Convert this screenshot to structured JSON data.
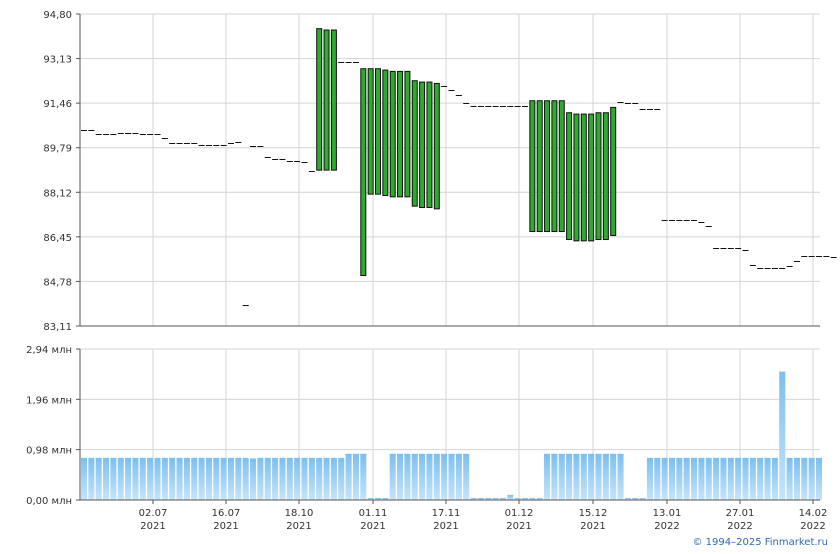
{
  "chart_data": [
    {
      "type": "candlestick",
      "panel": "price",
      "ylim": [
        83.11,
        94.8
      ],
      "yticks": [
        "94,80",
        "93,13",
        "91,46",
        "89,79",
        "88,12",
        "86,45",
        "84,78",
        "83,11"
      ],
      "ytick_values": [
        94.8,
        93.13,
        91.46,
        89.79,
        88.12,
        86.45,
        84.78,
        83.11
      ],
      "colors": {
        "body": "#2eaa2e",
        "outline": "#111111",
        "flat": "#111111"
      },
      "bars": [
        {
          "i": 0,
          "v": 90.45
        },
        {
          "i": 1,
          "v": 90.45
        },
        {
          "i": 2,
          "v": 90.3
        },
        {
          "i": 3,
          "v": 90.3
        },
        {
          "i": 4,
          "v": 90.3
        },
        {
          "i": 5,
          "v": 90.35
        },
        {
          "i": 6,
          "v": 90.35
        },
        {
          "i": 7,
          "v": 90.35
        },
        {
          "i": 8,
          "v": 90.3
        },
        {
          "i": 9,
          "v": 90.3
        },
        {
          "i": 10,
          "v": 90.3
        },
        {
          "i": 11,
          "v": 90.15
        },
        {
          "i": 12,
          "v": 89.95
        },
        {
          "i": 13,
          "v": 89.95
        },
        {
          "i": 14,
          "v": 89.95
        },
        {
          "i": 15,
          "v": 89.95
        },
        {
          "i": 16,
          "v": 89.9
        },
        {
          "i": 17,
          "v": 89.9
        },
        {
          "i": 18,
          "v": 89.9
        },
        {
          "i": 19,
          "v": 89.9
        },
        {
          "i": 20,
          "v": 89.95
        },
        {
          "i": 21,
          "v": 90.0
        },
        {
          "i": 22,
          "v": 83.9
        },
        {
          "i": 23,
          "v": 89.85
        },
        {
          "i": 24,
          "v": 89.85
        },
        {
          "i": 25,
          "v": 89.45
        },
        {
          "i": 26,
          "v": 89.35
        },
        {
          "i": 27,
          "v": 89.35
        },
        {
          "i": 28,
          "v": 89.3
        },
        {
          "i": 29,
          "v": 89.3
        },
        {
          "i": 30,
          "v": 89.25
        },
        {
          "i": 31,
          "v": 88.9
        },
        {
          "i": 32,
          "o": 94.25,
          "c": 88.95
        },
        {
          "i": 33,
          "o": 94.2,
          "c": 88.95
        },
        {
          "i": 34,
          "o": 94.2,
          "c": 88.95
        },
        {
          "i": 35,
          "v": 93.0
        },
        {
          "i": 36,
          "v": 93.0
        },
        {
          "i": 37,
          "v": 93.0
        },
        {
          "i": 38,
          "o": 92.75,
          "c": 85.0
        },
        {
          "i": 39,
          "o": 92.75,
          "c": 88.05
        },
        {
          "i": 40,
          "o": 92.75,
          "c": 88.05
        },
        {
          "i": 41,
          "o": 92.7,
          "c": 88.0
        },
        {
          "i": 42,
          "o": 92.65,
          "c": 87.95
        },
        {
          "i": 43,
          "o": 92.65,
          "c": 87.95
        },
        {
          "i": 44,
          "o": 92.65,
          "c": 87.95
        },
        {
          "i": 45,
          "o": 92.3,
          "c": 87.6
        },
        {
          "i": 46,
          "o": 92.25,
          "c": 87.55
        },
        {
          "i": 47,
          "o": 92.25,
          "c": 87.55
        },
        {
          "i": 48,
          "o": 92.2,
          "c": 87.5
        },
        {
          "i": 49,
          "v": 92.1
        },
        {
          "i": 50,
          "v": 91.95
        },
        {
          "i": 51,
          "v": 91.75
        },
        {
          "i": 52,
          "v": 91.45
        },
        {
          "i": 53,
          "v": 91.35
        },
        {
          "i": 54,
          "v": 91.35
        },
        {
          "i": 55,
          "v": 91.35
        },
        {
          "i": 56,
          "v": 91.35
        },
        {
          "i": 57,
          "v": 91.35
        },
        {
          "i": 58,
          "v": 91.35
        },
        {
          "i": 59,
          "v": 91.35
        },
        {
          "i": 60,
          "v": 91.35
        },
        {
          "i": 61,
          "o": 91.55,
          "c": 86.65
        },
        {
          "i": 62,
          "o": 91.55,
          "c": 86.65
        },
        {
          "i": 63,
          "o": 91.55,
          "c": 86.65
        },
        {
          "i": 64,
          "o": 91.55,
          "c": 86.65
        },
        {
          "i": 65,
          "o": 91.55,
          "c": 86.65
        },
        {
          "i": 66,
          "o": 91.1,
          "c": 86.35
        },
        {
          "i": 67,
          "o": 91.05,
          "c": 86.3
        },
        {
          "i": 68,
          "o": 91.05,
          "c": 86.3
        },
        {
          "i": 69,
          "o": 91.05,
          "c": 86.3
        },
        {
          "i": 70,
          "o": 91.1,
          "c": 86.35
        },
        {
          "i": 71,
          "o": 91.1,
          "c": 86.35
        },
        {
          "i": 72,
          "o": 91.3,
          "c": 86.5
        },
        {
          "i": 73,
          "v": 91.5
        },
        {
          "i": 74,
          "v": 91.45
        },
        {
          "i": 75,
          "v": 91.45
        },
        {
          "i": 76,
          "v": 91.25
        },
        {
          "i": 77,
          "v": 91.25
        },
        {
          "i": 78,
          "v": 91.25
        },
        {
          "i": 79,
          "v": 87.1
        },
        {
          "i": 80,
          "v": 87.1
        },
        {
          "i": 81,
          "v": 87.1
        },
        {
          "i": 82,
          "v": 87.1
        },
        {
          "i": 83,
          "v": 87.1
        },
        {
          "i": 84,
          "v": 87.0
        },
        {
          "i": 85,
          "v": 86.85
        },
        {
          "i": 86,
          "v": 86.05
        },
        {
          "i": 87,
          "v": 86.05
        },
        {
          "i": 88,
          "v": 86.05
        },
        {
          "i": 89,
          "v": 86.05
        },
        {
          "i": 90,
          "v": 85.95
        },
        {
          "i": 91,
          "v": 85.4
        },
        {
          "i": 92,
          "v": 85.3
        },
        {
          "i": 93,
          "v": 85.3
        },
        {
          "i": 94,
          "v": 85.3
        },
        {
          "i": 95,
          "v": 85.3
        },
        {
          "i": 96,
          "v": 85.35
        },
        {
          "i": 97,
          "v": 85.55
        },
        {
          "i": 98,
          "v": 85.75
        },
        {
          "i": 99,
          "v": 85.75
        },
        {
          "i": 100,
          "v": 85.75
        },
        {
          "i": 101,
          "v": 85.75
        },
        {
          "i": 102,
          "v": 85.7
        }
      ]
    },
    {
      "type": "bar",
      "panel": "volume",
      "ylim": [
        0,
        2.94
      ],
      "yticks": [
        "2,94 млн",
        "1,96 млн",
        "0,98 млн",
        "0,00 млн"
      ],
      "ytick_values": [
        2.94,
        1.96,
        0.98,
        0.0
      ],
      "unit": "млн",
      "colors": {
        "top": "#7cbff0",
        "bottom": "#c6e4fb"
      },
      "values": [
        0.82,
        0.82,
        0.82,
        0.82,
        0.82,
        0.82,
        0.82,
        0.82,
        0.82,
        0.82,
        0.82,
        0.82,
        0.82,
        0.82,
        0.82,
        0.82,
        0.82,
        0.82,
        0.82,
        0.82,
        0.82,
        0.82,
        0.82,
        0.81,
        0.82,
        0.82,
        0.82,
        0.82,
        0.82,
        0.82,
        0.82,
        0.82,
        0.82,
        0.82,
        0.82,
        0.82,
        0.9,
        0.9,
        0.9,
        0.04,
        0.04,
        0.04,
        0.9,
        0.9,
        0.9,
        0.9,
        0.9,
        0.9,
        0.9,
        0.9,
        0.9,
        0.9,
        0.9,
        0.04,
        0.04,
        0.04,
        0.04,
        0.04,
        0.1,
        0.04,
        0.04,
        0.04,
        0.04,
        0.9,
        0.9,
        0.9,
        0.9,
        0.9,
        0.9,
        0.9,
        0.9,
        0.9,
        0.9,
        0.9,
        0.04,
        0.04,
        0.04,
        0.82,
        0.82,
        0.82,
        0.82,
        0.82,
        0.82,
        0.82,
        0.82,
        0.82,
        0.82,
        0.82,
        0.82,
        0.82,
        0.82,
        0.82,
        0.82,
        0.82,
        0.82,
        2.5,
        0.82,
        0.82,
        0.82,
        0.82,
        0.82
      ]
    }
  ],
  "x_axis": {
    "ticks": [
      {
        "day": "02.07",
        "year": "2021"
      },
      {
        "day": "16.07",
        "year": "2021"
      },
      {
        "day": "18.10",
        "year": "2021"
      },
      {
        "day": "01.11",
        "year": "2021"
      },
      {
        "day": "17.11",
        "year": "2021"
      },
      {
        "day": "01.12",
        "year": "2021"
      },
      {
        "day": "15.12",
        "year": "2021"
      },
      {
        "day": "13.01",
        "year": "2022"
      },
      {
        "day": "27.01",
        "year": "2022"
      },
      {
        "day": "14.02",
        "year": "2022"
      }
    ]
  },
  "grid": true,
  "colors": {
    "grid": "#d4d4d4",
    "axis": "#555555",
    "label": "#333333",
    "credit": "#2f68b8"
  },
  "footer": {
    "credit": "© 1994–2025 Finmarket.ru"
  }
}
